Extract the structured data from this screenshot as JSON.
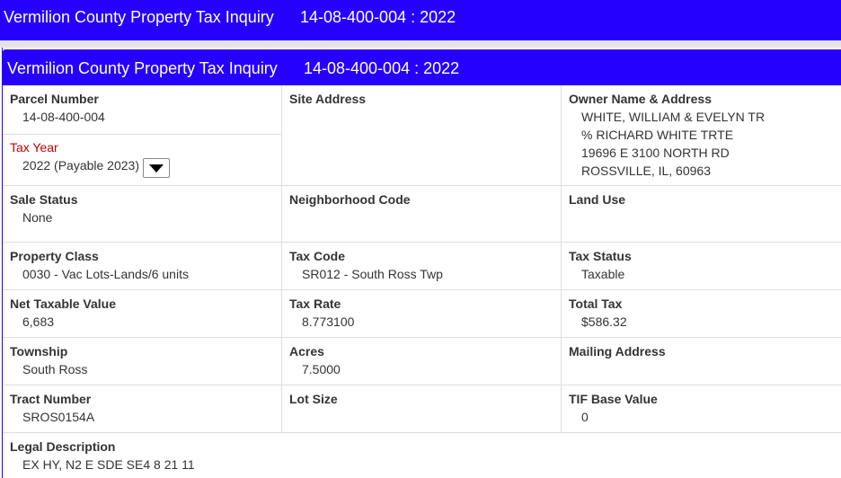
{
  "top_bar": {
    "title": "Vermilion County Property Tax Inquiry",
    "parcel": "14-08-400-004 : 2022"
  },
  "panel": {
    "title": "Vermilion County Property Tax Inquiry",
    "parcel": "14-08-400-004 : 2022"
  },
  "rows": [
    [
      [
        {
          "label": "Parcel Number",
          "value": "14-08-400-004"
        },
        {
          "label": "Tax Year",
          "value": "2022 (Payable 2023)"
        }
      ],
      {
        "label": "Site Address"
      },
      {
        "label": "Owner Name & Address",
        "lines": [
          "WHITE, WILLIAM & EVELYN TR",
          "% RICHARD WHITE TRTE",
          "19696 E 3100 NORTH RD",
          "ROSSVILLE, IL, 60963"
        ]
      }
    ],
    [
      {
        "label": "Sale Status",
        "value": "None"
      },
      {
        "label": "Neighborhood Code"
      },
      {
        "label": "Land Use"
      }
    ],
    [
      {
        "label": "Property Class",
        "value": "0030 - Vac Lots-Lands/6 units"
      },
      {
        "label": "Tax Code",
        "value": "SR012 - South Ross Twp"
      },
      {
        "label": "Tax Status",
        "value": "Taxable"
      }
    ],
    [
      {
        "label": "Net Taxable Value",
        "value": "6,683"
      },
      {
        "label": "Tax Rate",
        "value": "8.773100"
      },
      {
        "label": "Total Tax",
        "value": "$586.32"
      }
    ],
    [
      {
        "label": "Township",
        "value": "South Ross"
      },
      {
        "label": "Acres",
        "value": "7.5000"
      },
      {
        "label": "Mailing Address"
      }
    ],
    [
      {
        "label": "Tract Number",
        "value": "SROS0154A"
      },
      {
        "label": "Lot Size"
      },
      {
        "label": "TIF Base Value",
        "value": "0"
      }
    ],
    [
      {
        "label": "Legal Description",
        "value": "EX HY, N2 E SDE SE4 8 21 11"
      }
    ]
  ]
}
